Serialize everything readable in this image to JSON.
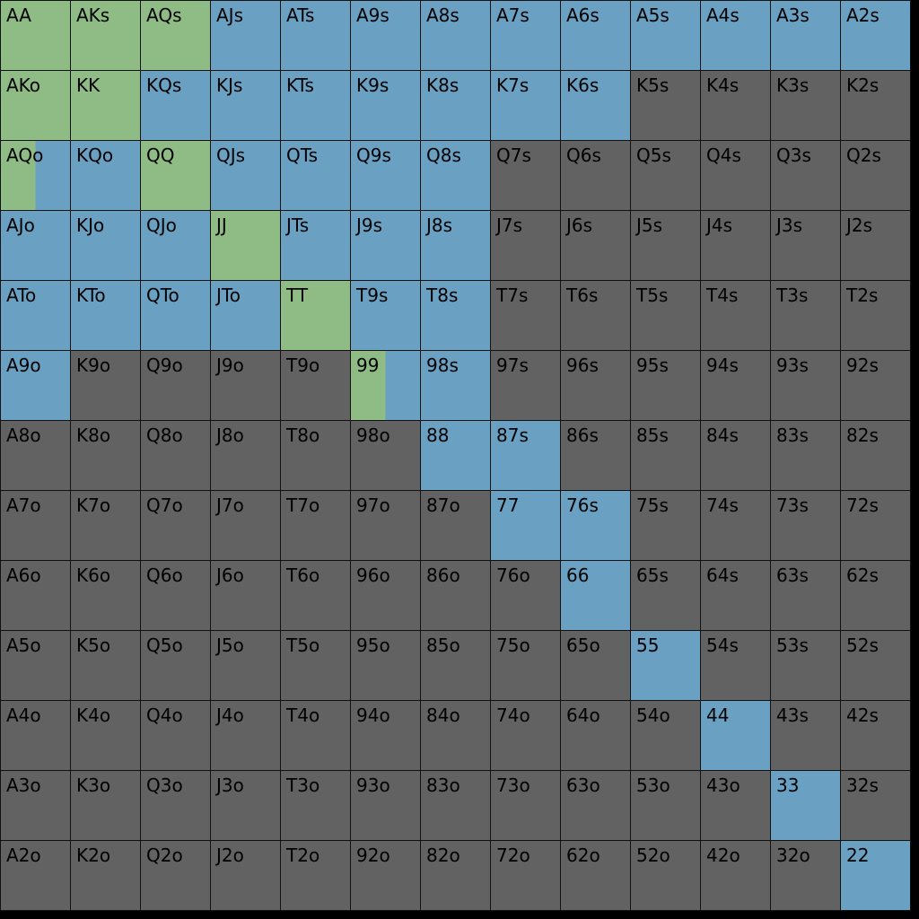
{
  "colors": {
    "raise": "#8fbc84",
    "call": "#6aa1c2",
    "fold": "#626262"
  },
  "ranks": [
    "A",
    "K",
    "Q",
    "J",
    "T",
    "9",
    "8",
    "7",
    "6",
    "5",
    "4",
    "3",
    "2"
  ],
  "grid": [
    [
      {
        "h": "AA",
        "r": 1
      },
      {
        "h": "AKs",
        "r": 1
      },
      {
        "h": "AQs",
        "r": 1
      },
      {
        "h": "AJs",
        "c": 1
      },
      {
        "h": "ATs",
        "c": 1
      },
      {
        "h": "A9s",
        "c": 1
      },
      {
        "h": "A8s",
        "c": 1
      },
      {
        "h": "A7s",
        "c": 1
      },
      {
        "h": "A6s",
        "c": 1
      },
      {
        "h": "A5s",
        "c": 1
      },
      {
        "h": "A4s",
        "c": 1
      },
      {
        "h": "A3s",
        "c": 1
      },
      {
        "h": "A2s",
        "c": 1
      }
    ],
    [
      {
        "h": "AKo",
        "r": 1
      },
      {
        "h": "KK",
        "r": 1
      },
      {
        "h": "KQs",
        "c": 1
      },
      {
        "h": "KJs",
        "c": 1
      },
      {
        "h": "KTs",
        "c": 1
      },
      {
        "h": "K9s",
        "c": 1
      },
      {
        "h": "K8s",
        "c": 1
      },
      {
        "h": "K7s",
        "c": 1
      },
      {
        "h": "K6s",
        "c": 1
      },
      {
        "h": "K5s"
      },
      {
        "h": "K4s"
      },
      {
        "h": "K3s"
      },
      {
        "h": "K2s"
      }
    ],
    [
      {
        "h": "AQo",
        "r": 0.5,
        "c": 0.5
      },
      {
        "h": "KQo",
        "c": 1
      },
      {
        "h": "QQ",
        "r": 1
      },
      {
        "h": "QJs",
        "c": 1
      },
      {
        "h": "QTs",
        "c": 1
      },
      {
        "h": "Q9s",
        "c": 1
      },
      {
        "h": "Q8s",
        "c": 1
      },
      {
        "h": "Q7s"
      },
      {
        "h": "Q6s"
      },
      {
        "h": "Q5s"
      },
      {
        "h": "Q4s"
      },
      {
        "h": "Q3s"
      },
      {
        "h": "Q2s"
      }
    ],
    [
      {
        "h": "AJo",
        "c": 1
      },
      {
        "h": "KJo",
        "c": 1
      },
      {
        "h": "QJo",
        "c": 1
      },
      {
        "h": "JJ",
        "r": 1
      },
      {
        "h": "JTs",
        "c": 1
      },
      {
        "h": "J9s",
        "c": 1
      },
      {
        "h": "J8s",
        "c": 1
      },
      {
        "h": "J7s"
      },
      {
        "h": "J6s"
      },
      {
        "h": "J5s"
      },
      {
        "h": "J4s"
      },
      {
        "h": "J3s"
      },
      {
        "h": "J2s"
      }
    ],
    [
      {
        "h": "ATo",
        "c": 1
      },
      {
        "h": "KTo",
        "c": 1
      },
      {
        "h": "QTo",
        "c": 1
      },
      {
        "h": "JTo",
        "c": 1
      },
      {
        "h": "TT",
        "r": 1
      },
      {
        "h": "T9s",
        "c": 1
      },
      {
        "h": "T8s",
        "c": 1
      },
      {
        "h": "T7s"
      },
      {
        "h": "T6s"
      },
      {
        "h": "T5s"
      },
      {
        "h": "T4s"
      },
      {
        "h": "T3s"
      },
      {
        "h": "T2s"
      }
    ],
    [
      {
        "h": "A9o",
        "c": 1
      },
      {
        "h": "K9o"
      },
      {
        "h": "Q9o"
      },
      {
        "h": "J9o"
      },
      {
        "h": "T9o"
      },
      {
        "h": "99",
        "r": 0.5,
        "c": 0.5
      },
      {
        "h": "98s",
        "c": 1
      },
      {
        "h": "97s"
      },
      {
        "h": "96s"
      },
      {
        "h": "95s"
      },
      {
        "h": "94s"
      },
      {
        "h": "93s"
      },
      {
        "h": "92s"
      }
    ],
    [
      {
        "h": "A8o"
      },
      {
        "h": "K8o"
      },
      {
        "h": "Q8o"
      },
      {
        "h": "J8o"
      },
      {
        "h": "T8o"
      },
      {
        "h": "98o"
      },
      {
        "h": "88",
        "c": 1
      },
      {
        "h": "87s",
        "c": 1
      },
      {
        "h": "86s"
      },
      {
        "h": "85s"
      },
      {
        "h": "84s"
      },
      {
        "h": "83s"
      },
      {
        "h": "82s"
      }
    ],
    [
      {
        "h": "A7o"
      },
      {
        "h": "K7o"
      },
      {
        "h": "Q7o"
      },
      {
        "h": "J7o"
      },
      {
        "h": "T7o"
      },
      {
        "h": "97o"
      },
      {
        "h": "87o"
      },
      {
        "h": "77",
        "c": 1
      },
      {
        "h": "76s",
        "c": 1
      },
      {
        "h": "75s"
      },
      {
        "h": "74s"
      },
      {
        "h": "73s"
      },
      {
        "h": "72s"
      }
    ],
    [
      {
        "h": "A6o"
      },
      {
        "h": "K6o"
      },
      {
        "h": "Q6o"
      },
      {
        "h": "J6o"
      },
      {
        "h": "T6o"
      },
      {
        "h": "96o"
      },
      {
        "h": "86o"
      },
      {
        "h": "76o"
      },
      {
        "h": "66",
        "c": 1
      },
      {
        "h": "65s"
      },
      {
        "h": "64s"
      },
      {
        "h": "63s"
      },
      {
        "h": "62s"
      }
    ],
    [
      {
        "h": "A5o"
      },
      {
        "h": "K5o"
      },
      {
        "h": "Q5o"
      },
      {
        "h": "J5o"
      },
      {
        "h": "T5o"
      },
      {
        "h": "95o"
      },
      {
        "h": "85o"
      },
      {
        "h": "75o"
      },
      {
        "h": "65o"
      },
      {
        "h": "55",
        "c": 1
      },
      {
        "h": "54s"
      },
      {
        "h": "53s"
      },
      {
        "h": "52s"
      }
    ],
    [
      {
        "h": "A4o"
      },
      {
        "h": "K4o"
      },
      {
        "h": "Q4o"
      },
      {
        "h": "J4o"
      },
      {
        "h": "T4o"
      },
      {
        "h": "94o"
      },
      {
        "h": "84o"
      },
      {
        "h": "74o"
      },
      {
        "h": "64o"
      },
      {
        "h": "54o"
      },
      {
        "h": "44",
        "c": 1
      },
      {
        "h": "43s"
      },
      {
        "h": "42s"
      }
    ],
    [
      {
        "h": "A3o"
      },
      {
        "h": "K3o"
      },
      {
        "h": "Q3o"
      },
      {
        "h": "J3o"
      },
      {
        "h": "T3o"
      },
      {
        "h": "93o"
      },
      {
        "h": "83o"
      },
      {
        "h": "73o"
      },
      {
        "h": "63o"
      },
      {
        "h": "53o"
      },
      {
        "h": "43o"
      },
      {
        "h": "33",
        "c": 1
      },
      {
        "h": "32s"
      }
    ],
    [
      {
        "h": "A2o"
      },
      {
        "h": "K2o"
      },
      {
        "h": "Q2o"
      },
      {
        "h": "J2o"
      },
      {
        "h": "T2o"
      },
      {
        "h": "92o"
      },
      {
        "h": "82o"
      },
      {
        "h": "72o"
      },
      {
        "h": "62o"
      },
      {
        "h": "52o"
      },
      {
        "h": "42o"
      },
      {
        "h": "32o"
      },
      {
        "h": "22",
        "c": 1
      }
    ]
  ]
}
